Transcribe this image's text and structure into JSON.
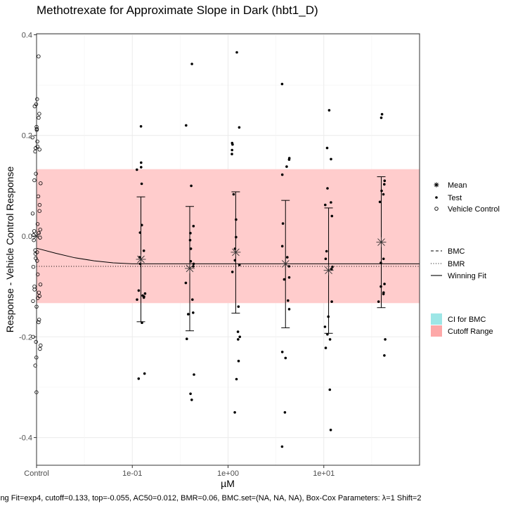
{
  "chart_data": {
    "type": "scatter",
    "title": "Methotrexate for Approximate Slope in Dark (hbt1_D)",
    "xlabel": "µM",
    "ylabel": "Response - Vehicle Control Response",
    "ylim": [
      -0.455,
      0.402
    ],
    "x_scale": "log",
    "xlim_log10": [
      -2.0,
      2.0
    ],
    "y_ticks": [
      {
        "value": 0.4,
        "label": "0.4"
      },
      {
        "value": 0.2,
        "label": "0.2"
      },
      {
        "value": 0.0,
        "label": "0.0"
      },
      {
        "value": -0.2,
        "label": "-0.2"
      },
      {
        "value": -0.4,
        "label": "-0.4"
      }
    ],
    "x_ticks": [
      {
        "value": -2.0,
        "label": "Control"
      },
      {
        "value": -1.0,
        "label": "1e-01"
      },
      {
        "value": 0.0,
        "label": "1e+00"
      },
      {
        "value": 1.0,
        "label": "1e+01"
      }
    ],
    "grid": true,
    "legend_position": "right",
    "cutoff": 0.133,
    "cutoff_color": "#ffcccc",
    "bmr": -0.06,
    "vehicle_control": [
      0.357,
      0.272,
      0.262,
      0.258,
      0.243,
      0.235,
      0.217,
      0.213,
      0.211,
      0.196,
      0.188,
      0.178,
      0.175,
      0.172,
      0.168,
      0.124,
      0.111,
      0.105,
      0.079,
      0.062,
      0.05,
      0.045,
      0.024,
      0.013,
      0.01,
      0.006,
      0.002,
      -0.003,
      -0.008,
      -0.028,
      -0.032,
      -0.035,
      -0.044,
      -0.049,
      -0.061,
      -0.076,
      -0.096,
      -0.1,
      -0.106,
      -0.112,
      -0.119,
      -0.123,
      -0.129,
      -0.14,
      -0.166,
      -0.171,
      -0.2,
      -0.21,
      -0.217,
      -0.224,
      -0.241,
      -0.257,
      -0.31
    ],
    "test_groups": [
      {
        "x": -0.91,
        "mean": -0.046,
        "err_low": -0.17,
        "err_high": 0.078,
        "points": [
          0.218,
          0.146,
          0.137,
          0.132,
          0.104,
          0.022,
          0.007,
          -0.029,
          -0.042,
          -0.055,
          -0.108,
          -0.114,
          -0.118,
          -0.12,
          -0.122,
          -0.126,
          -0.172,
          -0.273,
          -0.283
        ]
      },
      {
        "x": -0.4,
        "mean": -0.064,
        "err_low": -0.188,
        "err_high": 0.059,
        "points": [
          0.342,
          0.22,
          0.1,
          0.02,
          0.006,
          -0.008,
          -0.025,
          -0.05,
          -0.055,
          -0.06,
          -0.093,
          -0.126,
          -0.152,
          -0.155,
          -0.204,
          -0.275,
          -0.313,
          -0.325
        ]
      },
      {
        "x": 0.08,
        "mean": -0.032,
        "err_low": -0.153,
        "err_high": 0.088,
        "points": [
          0.365,
          0.216,
          0.185,
          0.182,
          0.171,
          0.163,
          0.083,
          0.033,
          -0.002,
          -0.025,
          -0.048,
          -0.057,
          -0.071,
          -0.14,
          -0.19,
          -0.2,
          -0.205,
          -0.248,
          -0.284,
          -0.35
        ]
      },
      {
        "x": 0.6,
        "mean": -0.055,
        "err_low": -0.182,
        "err_high": 0.071,
        "points": [
          0.302,
          0.155,
          0.152,
          0.138,
          0.122,
          0.025,
          -0.02,
          -0.042,
          -0.06,
          -0.082,
          -0.086,
          -0.128,
          -0.145,
          -0.23,
          -0.242,
          -0.35,
          -0.418
        ]
      },
      {
        "x": 1.05,
        "mean": -0.068,
        "err_low": -0.193,
        "err_high": 0.056,
        "points": [
          0.25,
          0.175,
          0.153,
          0.095,
          0.067,
          0.062,
          0.04,
          -0.03,
          -0.045,
          -0.061,
          -0.066,
          -0.13,
          -0.16,
          -0.18,
          -0.195,
          -0.205,
          -0.222,
          -0.305,
          -0.385
        ]
      },
      {
        "x": 1.6,
        "mean": -0.012,
        "err_low": -0.142,
        "err_high": 0.118,
        "points": [
          0.242,
          0.235,
          0.11,
          0.103,
          0.09,
          0.083,
          0.068,
          -0.045,
          -0.053,
          -0.095,
          -0.1,
          -0.112,
          -0.115,
          -0.13,
          -0.205,
          -0.237
        ]
      }
    ],
    "winning_fit": {
      "model": "exp4",
      "x": [
        -2.0,
        -1.8,
        -1.6,
        -1.4,
        -1.2,
        -1.0,
        -0.8,
        -0.4,
        0.4,
        1.2,
        2.0
      ],
      "y": [
        -0.024,
        -0.034,
        -0.043,
        -0.049,
        -0.053,
        -0.055,
        -0.055,
        -0.055,
        -0.055,
        -0.055,
        -0.055
      ]
    },
    "legend": {
      "mean": "Mean",
      "test": "Test",
      "vehicle": "Vehicle Control",
      "bmc": "BMC",
      "bmr": "BMR",
      "winning_fit": "Winning Fit",
      "ci_bmc": "CI for BMC",
      "cutoff_range": "Cutoff Range",
      "ci_color": "#9de6e6",
      "cutoff_swatch_color": "#fda8a8"
    },
    "footer": "ing Fit=exp4, cutoff=0.133, top=-0.055, AC50=0.012, BMR=0.06, BMC.set=(NA, NA, NA), Box-Cox Parameters: λ=1 Shift=2"
  }
}
